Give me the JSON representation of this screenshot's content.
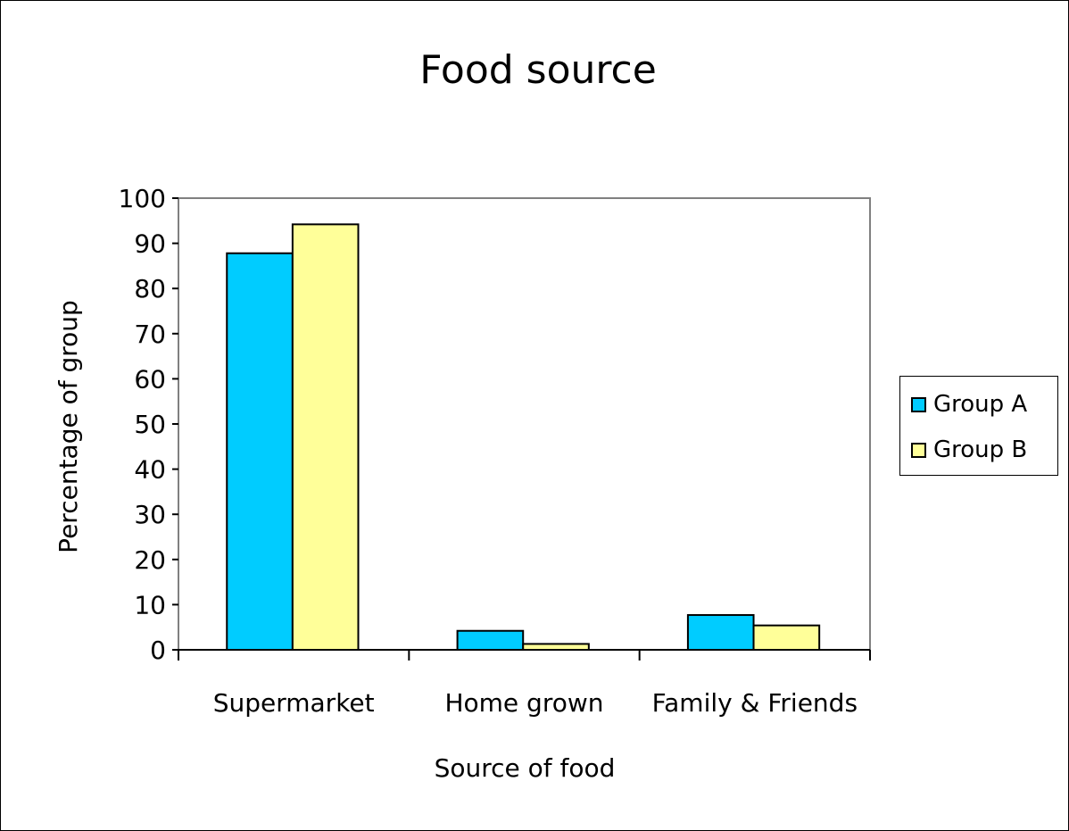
{
  "chart_data": {
    "type": "bar",
    "title": "Food source",
    "xlabel": "Source of food",
    "ylabel": "Percentage of group",
    "categories": [
      "Supermarket",
      "Home grown",
      "Family & Friends"
    ],
    "series": [
      {
        "name": "Group A",
        "values": [
          87.8,
          4.2,
          7.7
        ],
        "color": "#00ccff"
      },
      {
        "name": "Group B",
        "values": [
          94.2,
          1.3,
          5.4
        ],
        "color": "#ffff99"
      }
    ],
    "ylim": [
      0,
      100
    ],
    "yticks": [
      "0",
      "10",
      "20",
      "30",
      "40",
      "50",
      "60",
      "70",
      "80",
      "90",
      "100"
    ],
    "grid": false,
    "legend_position": "right"
  }
}
